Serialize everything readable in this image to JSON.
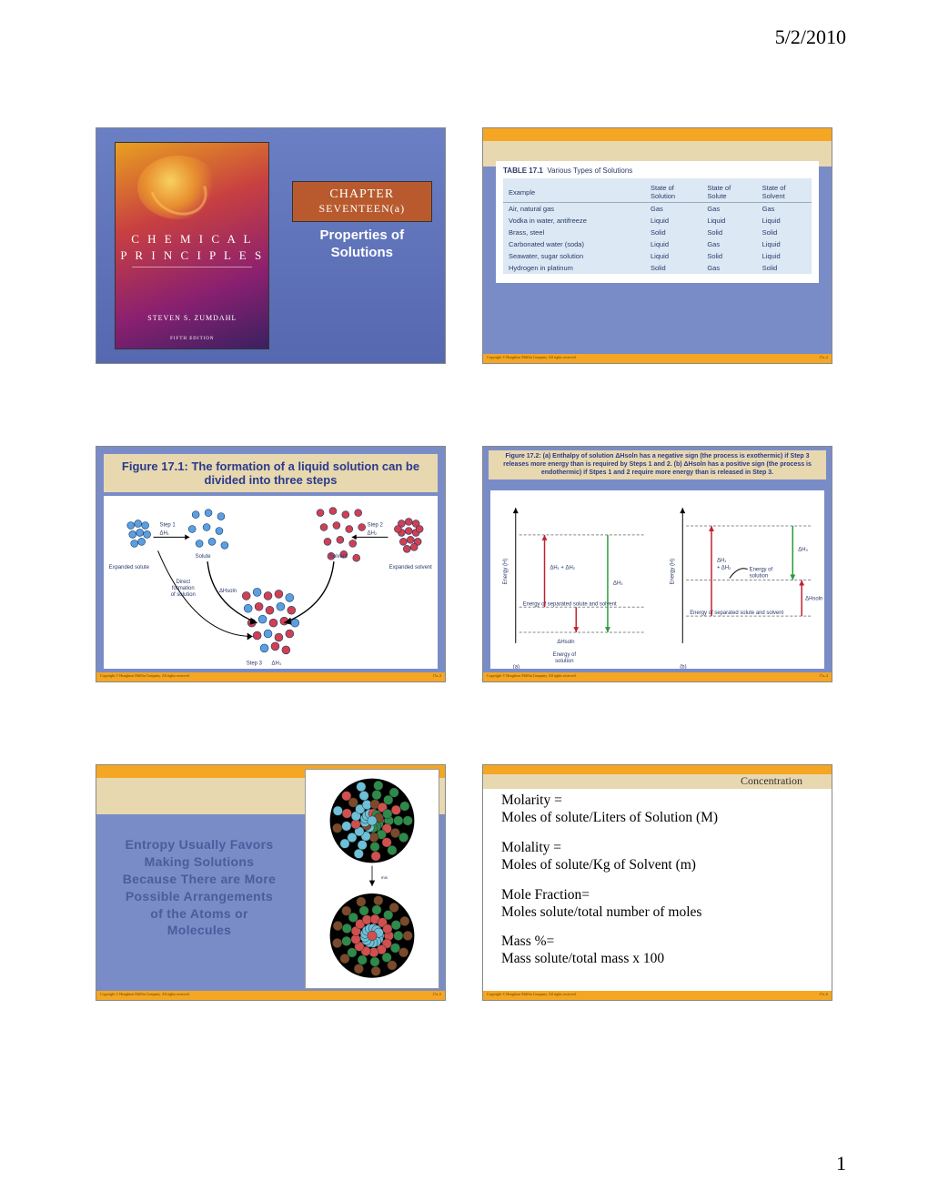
{
  "page": {
    "date": "5/2/2010",
    "number": "1"
  },
  "copyright": {
    "left": "Copyright © Houghton Mifflin Company. All rights reserved.",
    "right_prefix": "17a–"
  },
  "slide1": {
    "book": {
      "title1": "C H E M I C A L",
      "title2": "P R I N C I P L E S",
      "author": "STEVEN S. ZUMDAHL",
      "edition": "FIFTH EDITION"
    },
    "chapter": {
      "line1": "CHAPTER",
      "line2": "SEVENTEEN(a)"
    },
    "subtitle": "Properties of Solutions"
  },
  "slide2": {
    "caption_label": "TABLE 17.1",
    "caption_text": "Various Types of Solutions",
    "columns": [
      "Example",
      "State of Solution",
      "State of Solute",
      "State of Solvent"
    ],
    "rows": [
      [
        "Air, natural gas",
        "Gas",
        "Gas",
        "Gas"
      ],
      [
        "Vodka in water, antifreeze",
        "Liquid",
        "Liquid",
        "Liquid"
      ],
      [
        "Brass, steel",
        "Solid",
        "Solid",
        "Solid"
      ],
      [
        "Carbonated water (soda)",
        "Liquid",
        "Gas",
        "Liquid"
      ],
      [
        "Seawater, sugar solution",
        "Liquid",
        "Solid",
        "Liquid"
      ],
      [
        "Hydrogen in platinum",
        "Solid",
        "Gas",
        "Solid"
      ]
    ],
    "page": "2"
  },
  "slide3": {
    "title": "Figure 17.1:  The formation of a liquid solution can be divided into three steps",
    "labels": {
      "step1": "Step 1",
      "dH1": "ΔH₁",
      "solute": "Solute",
      "expanded_solute": "Expanded solute",
      "step2": "Step 2",
      "dH2": "ΔH₂",
      "solvent": "Solvent",
      "expanded_solvent": "Expanded solvent",
      "direct": "Direct formation of solution",
      "dHsoln": "ΔHsoln",
      "step3": "Step 3",
      "dH3": "ΔH₃"
    },
    "colors": {
      "solute": "#5aa0e0",
      "solvent": "#d04050",
      "arrow": "#000000"
    },
    "page": "3"
  },
  "slide4": {
    "title": "Figure 17.2:  (a) Enthalpy of solution ΔHsoln has a negative sign (the process is exothermic) if Step 3 releases more energy than is required by Steps 1 and 2. (b) ΔHsoln has a positive sign (the process is endothermic) if Stpes 1 and 2 require more energy than is released in Step 3.",
    "labels": {
      "yaxis": "Energy (H)",
      "sep": "Energy of separated solute and solvent",
      "soln": "Energy of solution",
      "dH1_dH2": "ΔH₁ + ΔH₂",
      "dH1_plus": "ΔH₁ + ΔH₂",
      "dH3": "ΔH₃",
      "dHsoln": "ΔHsoln",
      "a": "(a)",
      "b": "(b)"
    },
    "colors": {
      "up": "#c02030",
      "down": "#2a9a3a",
      "net": "#c02030",
      "dash": "#888"
    },
    "page": "4"
  },
  "slide5": {
    "text_lines": [
      "Entropy Usually Favors",
      "Making Solutions",
      "Because There are More",
      "Possible Arrangements",
      "of the Atoms or",
      "Molecules"
    ],
    "mix_label": "mix",
    "colors": {
      "atom_a": "#6cc0d8",
      "atom_b": "#d05050",
      "atom_c": "#2e8a4a",
      "atom_d": "#7a4a2a"
    },
    "page": "5"
  },
  "slide6": {
    "heading": "Concentration",
    "items": [
      {
        "label": "Molarity =",
        "def": "Moles of solute/Liters of Solution (M)"
      },
      {
        "label": "Molality =",
        "def": "Moles of solute/Kg of Solvent (m)"
      },
      {
        "label": "Mole Fraction=",
        "def": "Moles solute/total number of moles"
      },
      {
        "label": "Mass %=",
        "def": "Mass solute/total mass x 100"
      }
    ],
    "page": "6"
  }
}
